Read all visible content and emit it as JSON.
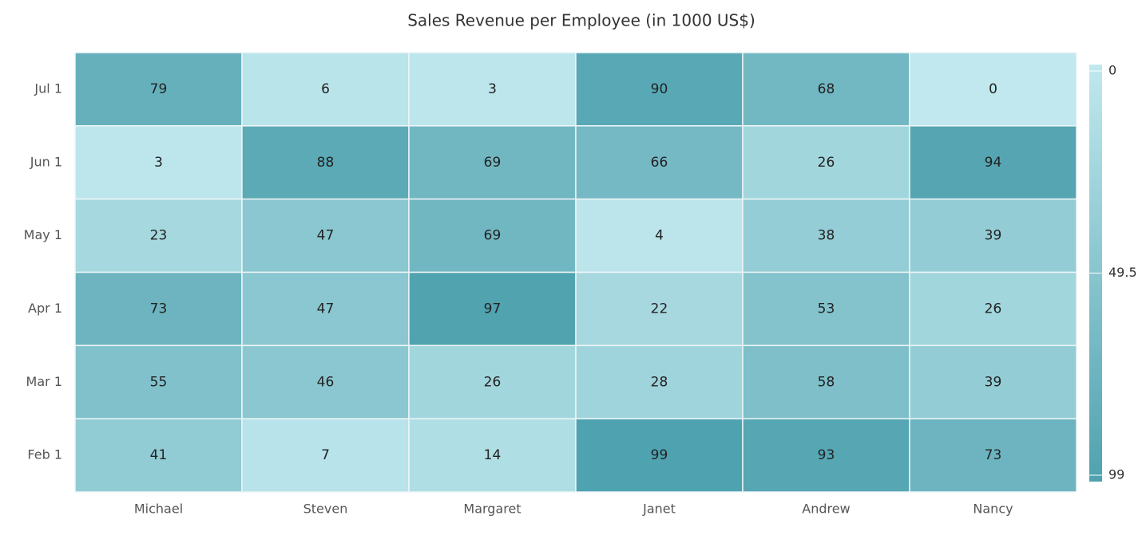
{
  "chart_data": {
    "type": "heatmap",
    "title": "Sales Revenue per Employee (in 1000 US$)",
    "x_categories": [
      "Michael",
      "Steven",
      "Margaret",
      "Janet",
      "Andrew",
      "Nancy"
    ],
    "y_categories": [
      "Jul 1",
      "Jun 1",
      "May 1",
      "Apr 1",
      "Mar 1",
      "Feb 1"
    ],
    "values": [
      [
        79,
        6,
        3,
        90,
        68,
        0
      ],
      [
        3,
        88,
        69,
        66,
        26,
        94
      ],
      [
        23,
        47,
        69,
        4,
        38,
        39
      ],
      [
        73,
        47,
        97,
        22,
        53,
        26
      ],
      [
        55,
        46,
        26,
        28,
        58,
        39
      ],
      [
        41,
        7,
        14,
        99,
        93,
        73
      ]
    ],
    "colors": [
      "#c0e8ee",
      "#4fa2af"
    ],
    "colorlim": [
      0,
      99
    ],
    "legend_ticks": [
      0,
      49.5,
      99
    ],
    "legend": "right"
  }
}
